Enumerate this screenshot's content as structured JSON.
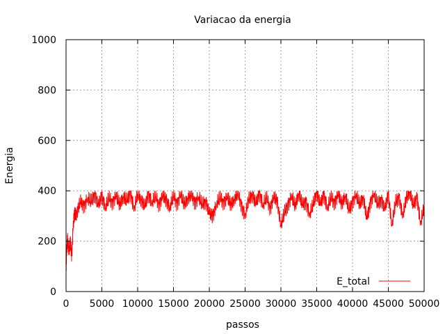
{
  "chart_data": {
    "type": "line",
    "title": "Variacao da energia",
    "xlabel": "passos",
    "ylabel": "Energia",
    "xlim": [
      0,
      50000
    ],
    "ylim": [
      0,
      1000
    ],
    "xticks": [
      "0",
      "5000",
      "10000",
      "15000",
      "20000",
      "25000",
      "30000",
      "35000",
      "40000",
      "45000",
      "50000"
    ],
    "yticks": [
      "0",
      "200",
      "400",
      "600",
      "800",
      "1000"
    ],
    "grid": true,
    "legend": "bottom-right",
    "series": [
      {
        "name": "E_total",
        "color": "#ff0000",
        "x": [
          0,
          100,
          200,
          400,
          600,
          800,
          1000,
          1200,
          1500,
          2000,
          2500,
          3000,
          3500,
          4000,
          4500,
          5000,
          5500,
          6000,
          6500,
          7000,
          7500,
          8000,
          8500,
          9000,
          9500,
          10000,
          10500,
          11000,
          11500,
          12000,
          12500,
          13000,
          13500,
          14000,
          14500,
          15000,
          15500,
          16000,
          16500,
          17000,
          17500,
          18000,
          18500,
          19000,
          19500,
          20000,
          20500,
          21000,
          21500,
          22000,
          22500,
          23000,
          23500,
          24000,
          24500,
          25000,
          25500,
          26000,
          26500,
          27000,
          27500,
          28000,
          28500,
          29000,
          29500,
          30000,
          30500,
          31000,
          31500,
          32000,
          32500,
          33000,
          33500,
          34000,
          34500,
          35000,
          35500,
          36000,
          36500,
          37000,
          37500,
          38000,
          38500,
          39000,
          39500,
          40000,
          40500,
          41000,
          41500,
          42000,
          42500,
          43000,
          43500,
          44000,
          44500,
          45000,
          45500,
          46000,
          46500,
          47000,
          47500,
          48000,
          48500,
          49000,
          49500,
          50000
        ],
        "values": [
          100,
          170,
          205,
          160,
          190,
          150,
          270,
          300,
          310,
          360,
          340,
          370,
          350,
          390,
          345,
          380,
          330,
          370,
          355,
          385,
          340,
          375,
          360,
          395,
          330,
          380,
          365,
          340,
          390,
          350,
          375,
          345,
          385,
          360,
          330,
          380,
          350,
          390,
          340,
          370,
          385,
          355,
          375,
          340,
          360,
          315,
          300,
          345,
          370,
          355,
          380,
          340,
          365,
          390,
          345,
          300,
          360,
          385,
          350,
          395,
          340,
          370,
          330,
          380,
          355,
          260,
          310,
          350,
          380,
          335,
          390,
          345,
          360,
          305,
          340,
          395,
          350,
          385,
          330,
          370,
          355,
          390,
          345,
          380,
          320,
          360,
          385,
          340,
          375,
          290,
          355,
          390,
          340,
          370,
          330,
          385,
          260,
          350,
          380,
          300,
          365,
          395,
          340,
          380,
          270,
          330
        ]
      }
    ]
  }
}
